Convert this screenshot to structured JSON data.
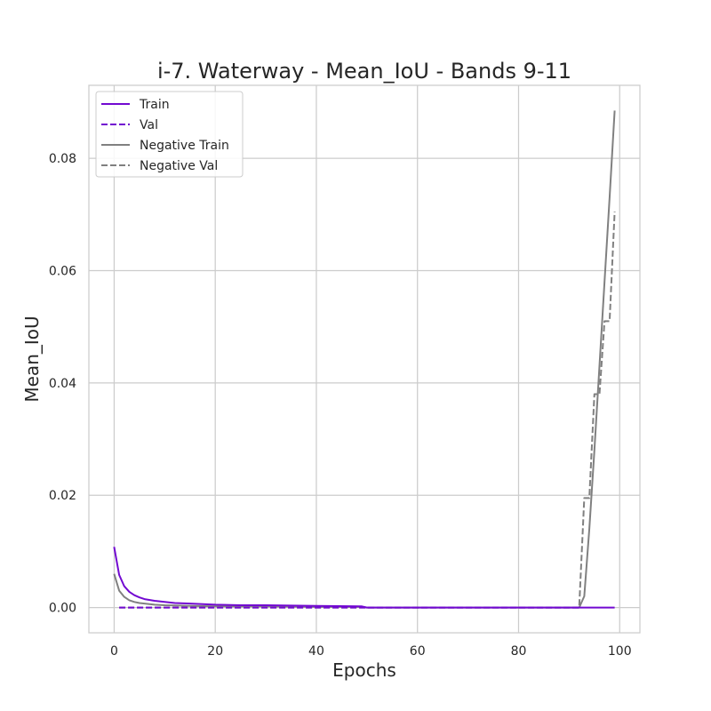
{
  "chart_data": {
    "type": "line",
    "title": "i-7. Waterway - Mean_IoU - Bands 9-11",
    "xlabel": "Epochs",
    "ylabel": "Mean_IoU",
    "xlim": [
      -5,
      104
    ],
    "ylim": [
      -0.0045,
      0.093
    ],
    "xticks": [
      0,
      20,
      40,
      60,
      80,
      100
    ],
    "yticks": [
      0.0,
      0.02,
      0.04,
      0.06,
      0.08
    ],
    "xtick_labels": [
      "0",
      "20",
      "40",
      "60",
      "80",
      "100"
    ],
    "ytick_labels": [
      "0.00",
      "0.02",
      "0.04",
      "0.06",
      "0.08"
    ],
    "grid": true,
    "legend_position": "top-left",
    "series": [
      {
        "name": "Train",
        "color": "#7209d1",
        "dash": "solid",
        "x": [
          0,
          1,
          2,
          3,
          4,
          5,
          6,
          8,
          10,
          12,
          15,
          20,
          25,
          30,
          40,
          49,
          50,
          60,
          70,
          80,
          90,
          92,
          95,
          99
        ],
        "y": [
          0.0108,
          0.0058,
          0.0038,
          0.0028,
          0.0022,
          0.0018,
          0.0015,
          0.0012,
          0.001,
          0.0008,
          0.0007,
          0.0005,
          0.0004,
          0.0004,
          0.0003,
          0.0002,
          0.0,
          0.0,
          0.0,
          0.0,
          0.0,
          0.0,
          0.0,
          0.0
        ]
      },
      {
        "name": "Val",
        "color": "#7209d1",
        "dash": "dashed",
        "x": [
          1,
          20,
          40,
          60,
          80,
          92
        ],
        "y": [
          0.0,
          0.0,
          0.0,
          0.0,
          0.0,
          0.0
        ]
      },
      {
        "name": "Negative Train",
        "color": "#808080",
        "dash": "solid",
        "x": [
          0,
          1,
          2,
          3,
          4,
          5,
          6,
          8,
          10,
          15,
          20,
          30,
          40,
          49,
          50,
          60,
          70,
          80,
          90,
          92,
          93,
          94,
          95,
          96,
          97,
          98,
          99
        ],
        "y": [
          0.006,
          0.003,
          0.0019,
          0.0013,
          0.001,
          0.0008,
          0.0007,
          0.0005,
          0.0004,
          0.0003,
          0.0002,
          0.0002,
          0.0001,
          0.0001,
          0.0,
          0.0,
          0.0,
          0.0,
          0.0,
          0.0,
          0.002,
          0.014,
          0.028,
          0.043,
          0.058,
          0.073,
          0.0885
        ]
      },
      {
        "name": "Negative Val",
        "color": "#808080",
        "dash": "dashed",
        "x": [
          1,
          20,
          40,
          60,
          80,
          92,
          93,
          94,
          95,
          96,
          97,
          98,
          99
        ],
        "y": [
          0.0,
          0.0,
          0.0,
          0.0,
          0.0,
          0.0,
          0.0195,
          0.0195,
          0.038,
          0.038,
          0.051,
          0.051,
          0.0705
        ]
      }
    ]
  }
}
